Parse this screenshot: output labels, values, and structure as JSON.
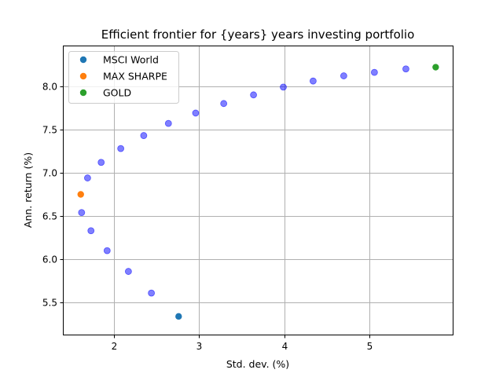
{
  "chart_data": {
    "type": "scatter",
    "title": "Efficient frontier for {years} years investing portfolio",
    "xlabel": "Std. dev. (%)",
    "ylabel": "Ann. return (%)",
    "xlim": [
      1.4,
      5.98
    ],
    "ylim": [
      5.13,
      8.47
    ],
    "xticks": [
      2,
      3,
      4,
      5
    ],
    "yticks": [
      5.5,
      6.0,
      6.5,
      7.0,
      7.5,
      8.0
    ],
    "grid": true,
    "legend_position": "upper-left",
    "legend": [
      {
        "name": "MSCI World",
        "color": "#1f77b4"
      },
      {
        "name": "MAX SHARPE",
        "color": "#ff7f0e"
      },
      {
        "name": "GOLD",
        "color": "#2ca02c"
      }
    ],
    "frontier": {
      "color": "#0000ff",
      "alpha": 0.5,
      "points": [
        {
          "x": 2.44,
          "y": 5.61
        },
        {
          "x": 2.17,
          "y": 5.86
        },
        {
          "x": 1.92,
          "y": 6.1
        },
        {
          "x": 1.73,
          "y": 6.33
        },
        {
          "x": 1.62,
          "y": 6.54
        },
        {
          "x": 1.69,
          "y": 6.94
        },
        {
          "x": 1.85,
          "y": 7.12
        },
        {
          "x": 2.08,
          "y": 7.28
        },
        {
          "x": 2.35,
          "y": 7.43
        },
        {
          "x": 2.64,
          "y": 7.57
        },
        {
          "x": 2.96,
          "y": 7.69
        },
        {
          "x": 3.29,
          "y": 7.8
        },
        {
          "x": 3.64,
          "y": 7.9
        },
        {
          "x": 3.99,
          "y": 7.99
        },
        {
          "x": 4.34,
          "y": 8.06
        },
        {
          "x": 4.7,
          "y": 8.12
        },
        {
          "x": 5.06,
          "y": 8.16
        },
        {
          "x": 5.43,
          "y": 8.2
        }
      ]
    },
    "highlights": [
      {
        "name": "MSCI World",
        "x": 2.76,
        "y": 5.34,
        "color": "#1f77b4"
      },
      {
        "name": "MAX SHARPE",
        "x": 1.61,
        "y": 6.75,
        "color": "#ff7f0e"
      },
      {
        "name": "GOLD",
        "x": 5.78,
        "y": 8.22,
        "color": "#2ca02c"
      }
    ]
  }
}
